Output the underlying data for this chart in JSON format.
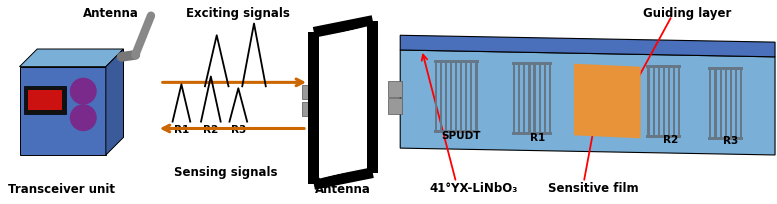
{
  "bg_color": "#ffffff",
  "blue_main": "#4a6fbb",
  "blue_light": "#7ab0d8",
  "blue_side": "#3a5a9a",
  "blue_front": "#5577cc",
  "gray_antenna": "#888888",
  "gray_mid": "#aaaaaa",
  "purple_circle": "#7a2a8a",
  "red_rect": "#cc1111",
  "orange_film": "#e8923a",
  "arrow_orange": "#cc6600",
  "idt_color": "#666677",
  "idt_light": "#8899aa",
  "transceiver_label": "Transceiver unit",
  "antenna_label": "Antenna",
  "exciting_label": "Exciting signals",
  "sensing_label": "Sensing signals",
  "antenna2_label": "Antenna",
  "substrate_label": "41°YX-LiNbO₃",
  "sensitive_label": "Sensitive film",
  "guiding_label": "Guiding layer",
  "spudt_label": "SPUDT",
  "r1_label": "R1",
  "r2_label": "R2",
  "r3_label": "R3"
}
